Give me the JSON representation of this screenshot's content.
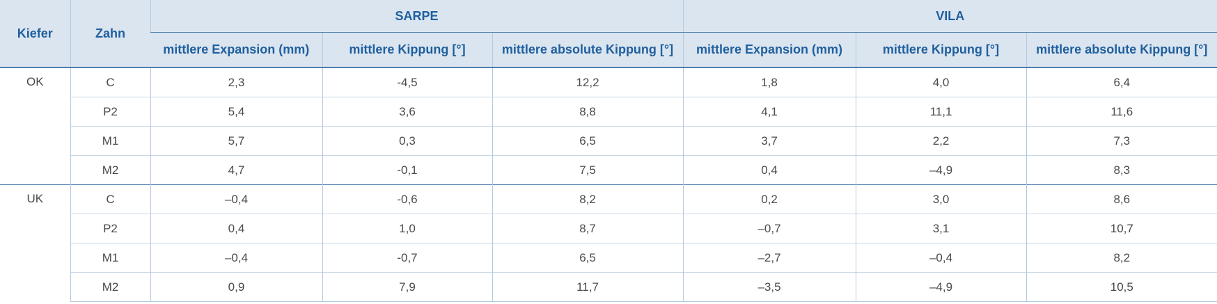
{
  "header": {
    "kiefer": "Kiefer",
    "zahn": "Zahn",
    "groups": [
      {
        "label": "SARPE",
        "columns": [
          "mittlere Expansion (mm)",
          "mittlere Kippung [°]",
          "mittlere absolute Kippung [°]"
        ]
      },
      {
        "label": "VILA",
        "columns": [
          "mittlere Expansion (mm)",
          "mittlere Kippung [°]",
          "mittlere absolute Kippung [°]"
        ]
      }
    ]
  },
  "body": [
    {
      "kiefer": "OK",
      "rows": [
        {
          "zahn": "C",
          "values": [
            "2,3",
            "-4,5",
            "12,2",
            "1,8",
            "4,0",
            "6,4"
          ]
        },
        {
          "zahn": "P2",
          "values": [
            "5,4",
            "3,6",
            "8,8",
            "4,1",
            "11,1",
            "11,6"
          ]
        },
        {
          "zahn": "M1",
          "values": [
            "5,7",
            "0,3",
            "6,5",
            "3,7",
            "2,2",
            "7,3"
          ]
        },
        {
          "zahn": "M2",
          "values": [
            "4,7",
            "-0,1",
            "7,5",
            "0,4",
            "–4,9",
            "8,3"
          ]
        }
      ]
    },
    {
      "kiefer": "UK",
      "rows": [
        {
          "zahn": "C",
          "values": [
            "–0,4",
            "-0,6",
            "8,2",
            "0,2",
            "3,0",
            "8,6"
          ]
        },
        {
          "zahn": "P2",
          "values": [
            "0,4",
            "1,0",
            "8,7",
            "–0,7",
            "3,1",
            "10,7"
          ]
        },
        {
          "zahn": "M1",
          "values": [
            "–0,4",
            "-0,7",
            "6,5",
            "–2,7",
            "–0,4",
            "8,2"
          ]
        },
        {
          "zahn": "M2",
          "values": [
            "0,9",
            "7,9",
            "11,7",
            "–3,5",
            "–4,9",
            "10,5"
          ]
        }
      ]
    }
  ]
}
